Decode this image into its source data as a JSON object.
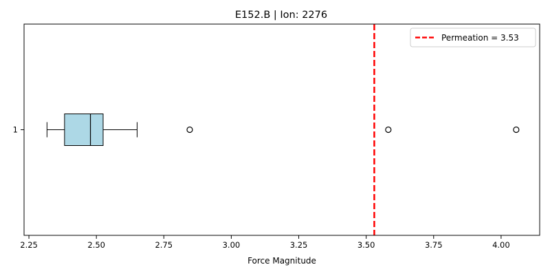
{
  "chart_data": {
    "type": "boxplot",
    "orientation": "horizontal",
    "title": "E152.B | Ion: 2276",
    "xlabel": "Force Magnitude",
    "ylabel": "",
    "xlim": [
      2.232,
      4.143
    ],
    "x_ticks": [
      "2.25",
      "2.50",
      "2.75",
      "3.00",
      "3.25",
      "3.50",
      "3.75",
      "4.00"
    ],
    "y_ticks": [
      "1"
    ],
    "box": {
      "position": 1,
      "whisker_low": 2.317,
      "q1": 2.382,
      "median": 2.478,
      "q3": 2.525,
      "whisker_high": 2.651,
      "outliers": [
        2.846,
        3.582,
        4.056
      ],
      "fill_color": "#add8e6"
    },
    "reference_line": {
      "value": 3.53,
      "color": "#ff0000",
      "style": "dashed",
      "legend_label": "Permeation = 3.53"
    },
    "legend_position": "top-right",
    "grid": false
  }
}
